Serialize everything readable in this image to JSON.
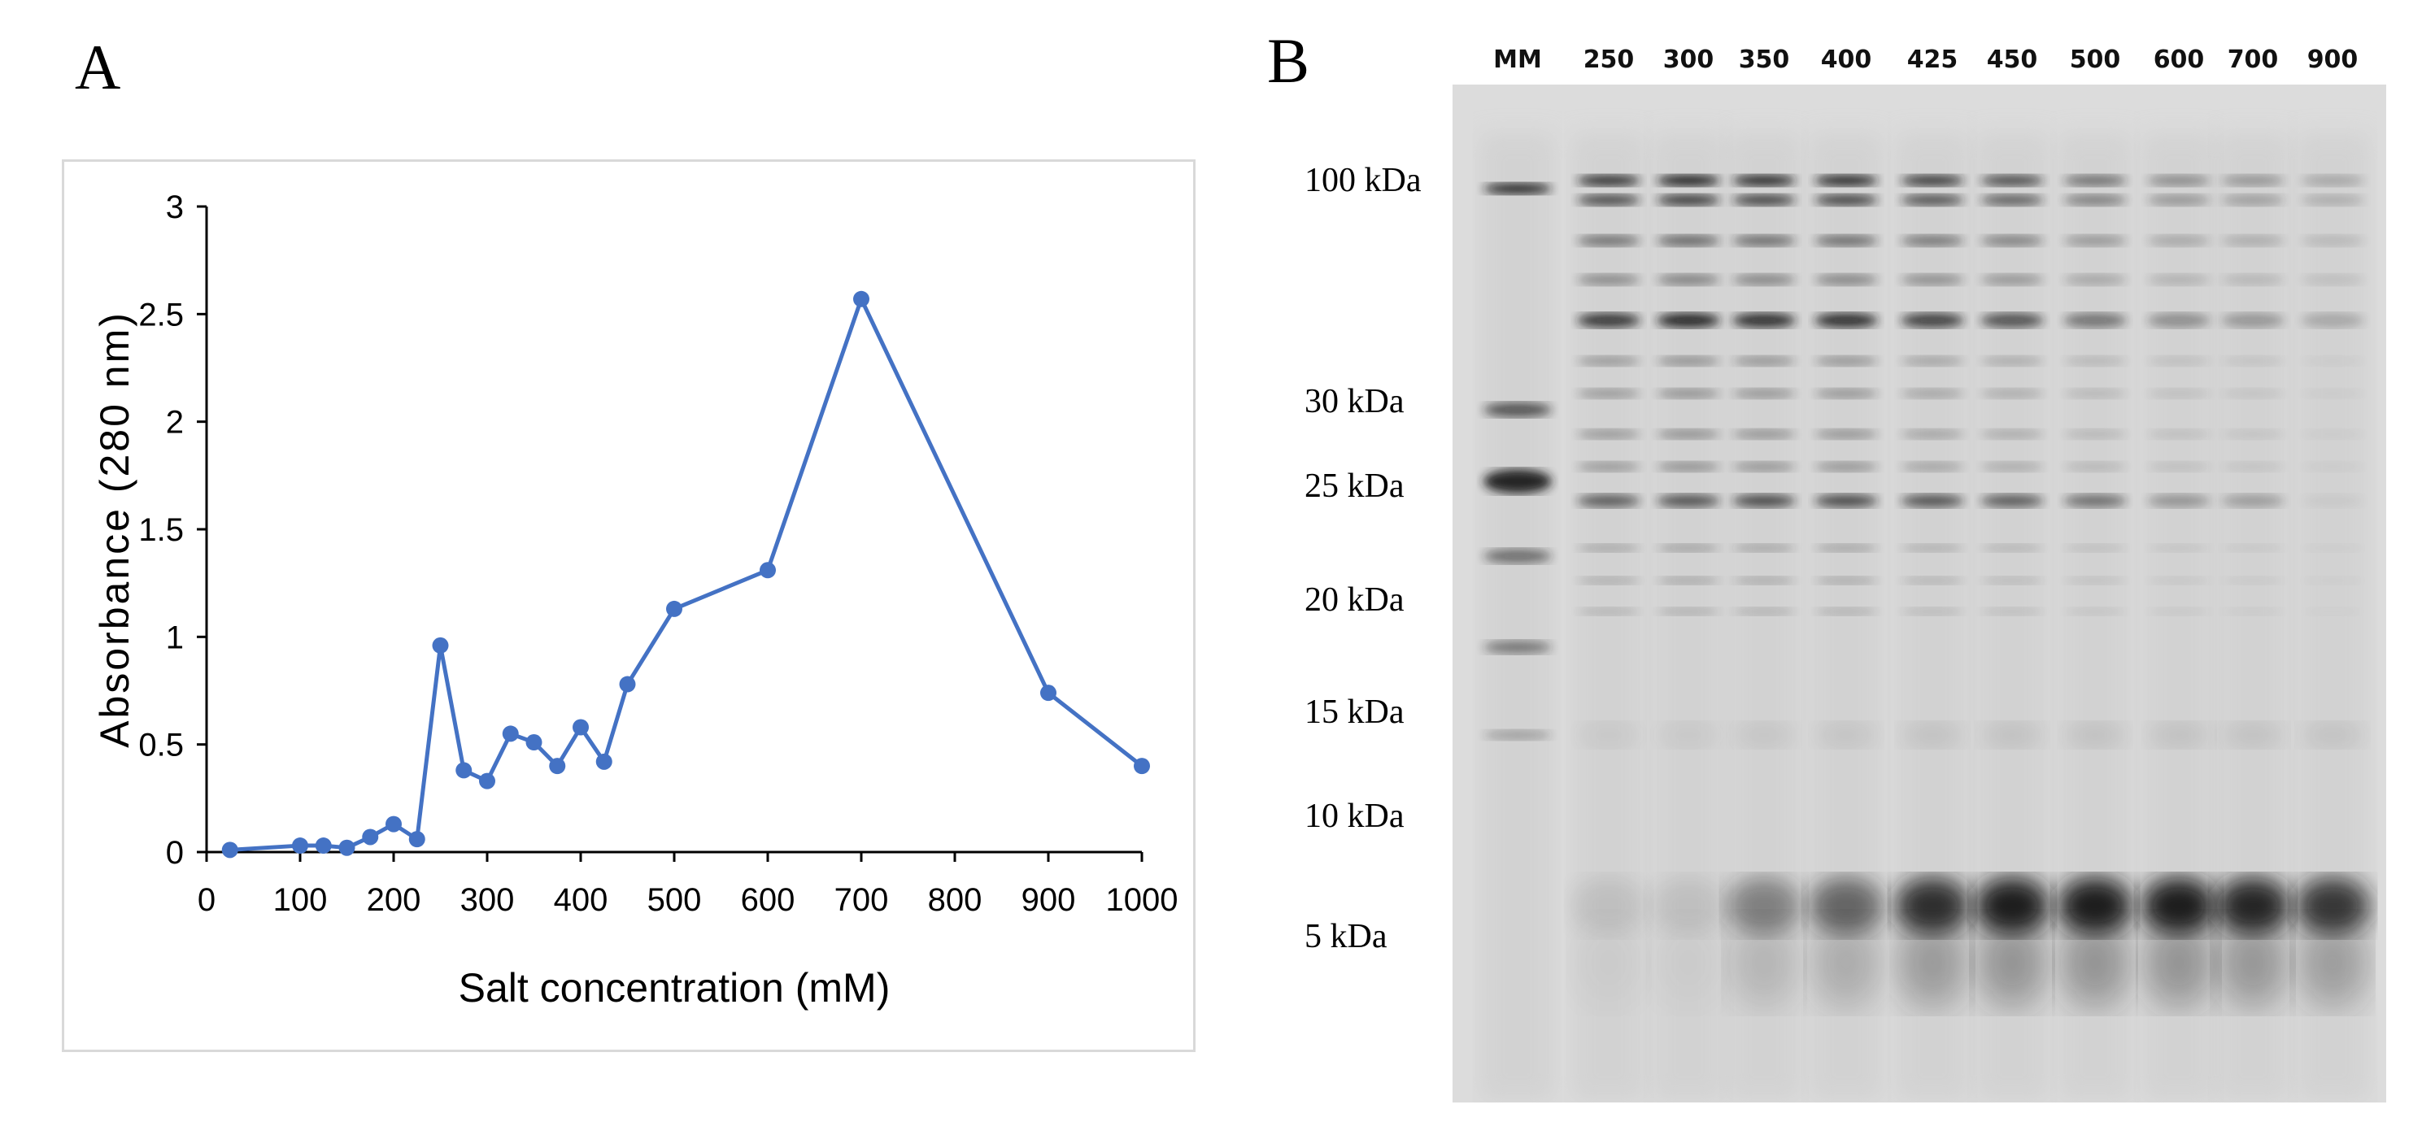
{
  "panel_a": {
    "label": "A"
  },
  "panel_b": {
    "label": "B",
    "lanes": [
      "MM",
      "250",
      "300",
      "350",
      "400",
      "425",
      "450",
      "500",
      "600",
      "700",
      "900"
    ],
    "markers": [
      "100 kDa",
      "30 kDa",
      "25 kDa",
      "20 kDa",
      "15 kDa",
      "10 kDa",
      "5 kDa"
    ]
  },
  "chart_data": {
    "type": "line",
    "title": "",
    "xlabel": "Salt concentration (mM)",
    "ylabel": "Absorbance (280 nm)",
    "xlim": [
      0,
      1000
    ],
    "ylim": [
      0,
      3
    ],
    "xticks": [
      "0",
      "100",
      "200",
      "300",
      "400",
      "500",
      "600",
      "700",
      "800",
      "900",
      "1000"
    ],
    "yticks": [
      "0",
      "0.5",
      "1",
      "1.5",
      "2",
      "2.5",
      "3"
    ],
    "grid": false,
    "legend": "none",
    "series": [
      {
        "name": "Absorbance",
        "color": "#4472c4",
        "x": [
          25,
          100,
          125,
          150,
          175,
          200,
          225,
          250,
          275,
          300,
          325,
          350,
          375,
          400,
          425,
          450,
          500,
          600,
          700,
          900,
          1000
        ],
        "y": [
          0.01,
          0.03,
          0.03,
          0.02,
          0.07,
          0.13,
          0.06,
          0.96,
          0.38,
          0.33,
          0.55,
          0.51,
          0.4,
          0.58,
          0.42,
          0.78,
          1.13,
          1.31,
          2.57,
          0.74,
          0.4
        ]
      }
    ]
  }
}
